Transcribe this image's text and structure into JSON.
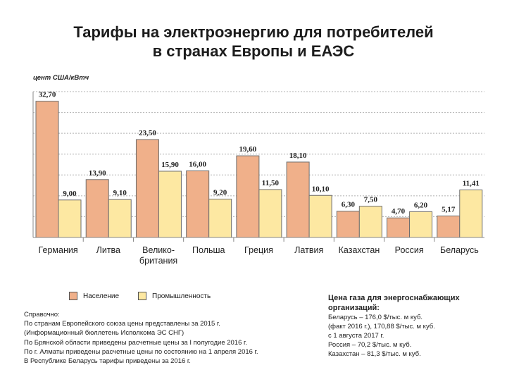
{
  "title_line1": "Тарифы на электроэнергию для потребителей",
  "title_line2": "в странах Европы и ЕАЭС",
  "chart_data": {
    "type": "bar",
    "ylabel": "цент США/кВтч",
    "ylim": [
      0,
      35
    ],
    "grid": true,
    "categories": [
      [
        "Германия"
      ],
      [
        "Литва"
      ],
      [
        "Велико-",
        "британия"
      ],
      [
        "Польша"
      ],
      [
        "Греция"
      ],
      [
        "Латвия"
      ],
      [
        "Казахстан"
      ],
      [
        "Россия"
      ],
      [
        "Беларусь"
      ]
    ],
    "series": [
      {
        "name": "Население",
        "values": [
          32.7,
          13.9,
          23.5,
          16.0,
          19.6,
          18.1,
          6.3,
          4.7,
          5.17
        ],
        "labels": [
          "32,70",
          "13,90",
          "23,50",
          "16,00",
          "19,60",
          "18,10",
          "6,30",
          "4,70",
          "5,17"
        ],
        "color": "#f0b08a"
      },
      {
        "name": "Промышленность",
        "values": [
          9.0,
          9.1,
          15.9,
          9.2,
          11.5,
          10.1,
          7.5,
          6.2,
          11.41
        ],
        "labels": [
          "9,00",
          "9,10",
          "15,90",
          "9,20",
          "11,50",
          "10,10",
          "7,50",
          "6,20",
          "11,41"
        ],
        "color": "#fde8a2"
      }
    ]
  },
  "legend": {
    "population": "Население",
    "industry": "Промышленность"
  },
  "notes": [
    "Справочно:",
    "По странам Европейского союза цены представлены за 2015 г.",
    "(Информационный бюллетень Исполкома ЭС СНГ)",
    "По Брянской области приведены расчетные цены за I полугодие 2016 г.",
    "По г. Алматы приведены расчетные цены по состоянию на 1 апреля 2016 г.",
    "В Республике Беларусь тарифы приведены за 2016 г."
  ],
  "gas": {
    "title": "Цена газа для энергоснабжающих организаций:",
    "lines": [
      "Беларусь – 176,0 $/тыс. м куб.",
      "(факт 2016 г.), 170,88 $/тыс. м куб.",
      "с 1 августа 2017 г.",
      "Россия –  70,2 $/тыс. м куб.",
      "Казахстан – 81,3 $/тыс. м куб."
    ]
  }
}
